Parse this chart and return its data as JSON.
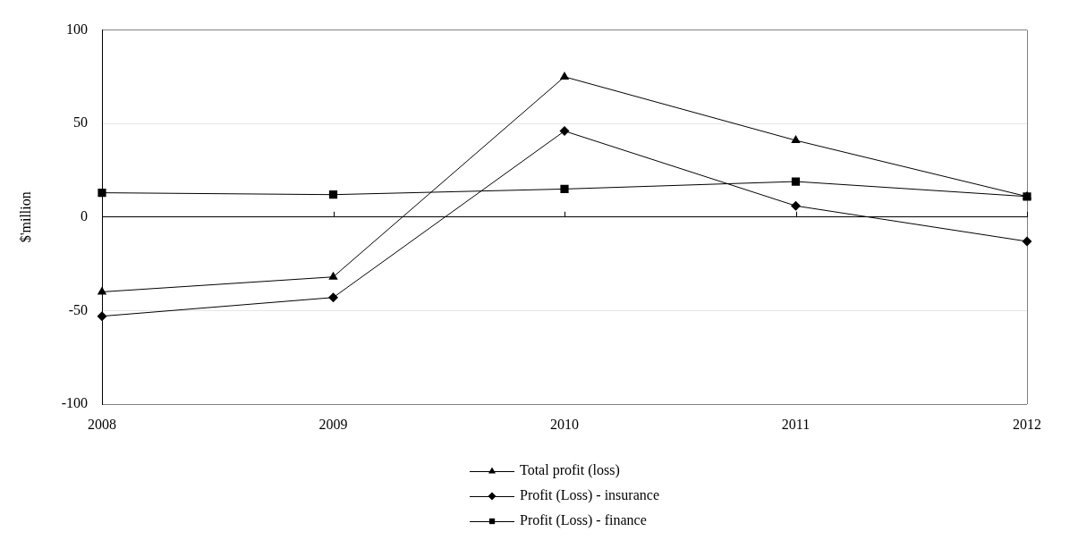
{
  "chart_data": {
    "type": "line",
    "categories": [
      "2008",
      "2009",
      "2010",
      "2011",
      "2012"
    ],
    "ylabel": "$'million",
    "ylim": [
      -100,
      100
    ],
    "yticks": [
      -100,
      -50,
      0,
      50,
      100
    ],
    "grid": "y",
    "legend": "bottom",
    "line_style": "solid",
    "series": [
      {
        "name": "Total profit (loss)",
        "color": "#000000",
        "marker": "triangle",
        "values": [
          -40,
          -32,
          75,
          41,
          11
        ]
      },
      {
        "name": "Profit (Loss) - insurance",
        "color": "#000000",
        "marker": "diamond",
        "values": [
          -53,
          -43,
          46,
          6,
          -13
        ]
      },
      {
        "name": "Profit (Loss) - finance",
        "color": "#000000",
        "marker": "square",
        "values": [
          13,
          12,
          15,
          19,
          11
        ]
      }
    ]
  }
}
